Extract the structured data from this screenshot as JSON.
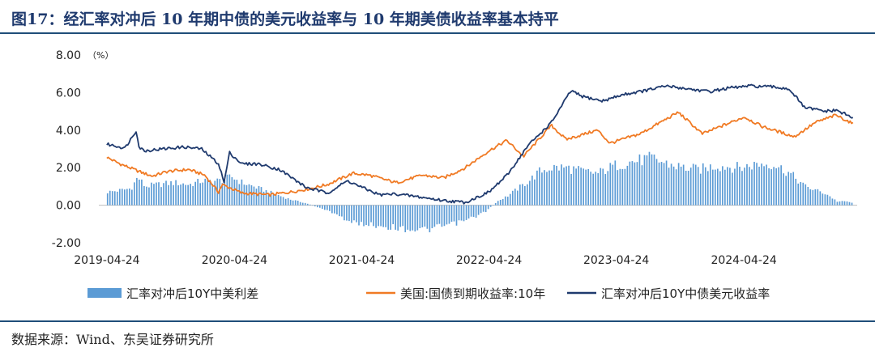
{
  "title": "图17：经汇率对冲后 10 年期中债的美元收益率与 10 年期美债收益率基本持平",
  "source": "数据来源：Wind、东吴证券研究所",
  "chart_data": {
    "type": "line",
    "unit_label": "（%）",
    "ylim": [
      -2.0,
      8.0
    ],
    "y_ticks": [
      "8.00",
      "6.00",
      "4.00",
      "2.00",
      "0.00",
      "-2.00"
    ],
    "x_ticks": [
      "2019-04-24",
      "2020-04-24",
      "2021-04-24",
      "2022-04-24",
      "2023-04-24",
      "2024-04-24"
    ],
    "xlim": [
      "2019-04-01",
      "2025-03-15"
    ],
    "grid": false,
    "legend_position": "bottom",
    "series": [
      {
        "name": "汇率对冲后10Y中美利差",
        "kind": "bar",
        "color": "#5b9bd5",
        "points": [
          [
            "2019-04-24",
            0.7
          ],
          [
            "2019-06-01",
            0.8
          ],
          [
            "2019-07-01",
            0.9
          ],
          [
            "2019-07-20",
            1.5
          ],
          [
            "2019-08-10",
            1.0
          ],
          [
            "2019-09-15",
            1.1
          ],
          [
            "2019-11-01",
            1.2
          ],
          [
            "2019-12-15",
            1.1
          ],
          [
            "2020-01-20",
            1.3
          ],
          [
            "2020-03-10",
            1.3
          ],
          [
            "2020-04-15",
            1.5
          ],
          [
            "2020-05-15",
            1.2
          ],
          [
            "2020-07-01",
            0.9
          ],
          [
            "2020-08-15",
            0.6
          ],
          [
            "2020-10-01",
            0.3
          ],
          [
            "2020-11-15",
            0.1
          ],
          [
            "2020-12-15",
            -0.1
          ],
          [
            "2021-01-15",
            -0.3
          ],
          [
            "2021-02-15",
            -0.5
          ],
          [
            "2021-03-15",
            -0.9
          ],
          [
            "2021-05-01",
            -1.0
          ],
          [
            "2021-06-15",
            -1.1
          ],
          [
            "2021-08-01",
            -1.2
          ],
          [
            "2021-09-15",
            -1.3
          ],
          [
            "2021-11-01",
            -1.3
          ],
          [
            "2021-12-15",
            -1.1
          ],
          [
            "2022-02-01",
            -0.9
          ],
          [
            "2022-03-15",
            -0.6
          ],
          [
            "2022-04-15",
            -0.3
          ],
          [
            "2022-05-15",
            0.2
          ],
          [
            "2022-06-15",
            0.5
          ],
          [
            "2022-07-15",
            0.9
          ],
          [
            "2022-08-15",
            1.3
          ],
          [
            "2022-09-15",
            1.8
          ],
          [
            "2022-10-15",
            2.0
          ],
          [
            "2022-12-01",
            2.0
          ],
          [
            "2023-01-15",
            1.8
          ],
          [
            "2023-03-01",
            1.7
          ],
          [
            "2023-04-15",
            2.1
          ],
          [
            "2023-06-01",
            2.3
          ],
          [
            "2023-08-01",
            2.5
          ],
          [
            "2023-09-15",
            2.2
          ],
          [
            "2023-11-01",
            2.0
          ],
          [
            "2023-12-15",
            1.9
          ],
          [
            "2024-02-01",
            2.1
          ],
          [
            "2024-04-15",
            2.0
          ],
          [
            "2024-06-01",
            2.2
          ],
          [
            "2024-07-15",
            2.2
          ],
          [
            "2024-09-01",
            1.7
          ],
          [
            "2024-10-15",
            1.0
          ],
          [
            "2024-11-15",
            0.8
          ],
          [
            "2024-12-15",
            0.6
          ],
          [
            "2025-01-15",
            0.2
          ],
          [
            "2025-02-15",
            0.2
          ],
          [
            "2025-03-01",
            0.1
          ]
        ]
      },
      {
        "name": "美国:国债到期收益率:10年",
        "kind": "line",
        "color": "#f07a24",
        "points": [
          [
            "2019-04-24",
            2.55
          ],
          [
            "2019-06-01",
            2.2
          ],
          [
            "2019-08-01",
            1.75
          ],
          [
            "2019-09-01",
            1.55
          ],
          [
            "2019-10-15",
            1.8
          ],
          [
            "2019-12-15",
            1.9
          ],
          [
            "2020-01-30",
            1.6
          ],
          [
            "2020-03-09",
            0.7
          ],
          [
            "2020-03-20",
            1.1
          ],
          [
            "2020-05-15",
            0.65
          ],
          [
            "2020-08-01",
            0.55
          ],
          [
            "2020-10-01",
            0.7
          ],
          [
            "2020-12-01",
            0.9
          ],
          [
            "2021-01-15",
            1.1
          ],
          [
            "2021-03-30",
            1.7
          ],
          [
            "2021-05-15",
            1.6
          ],
          [
            "2021-08-01",
            1.2
          ],
          [
            "2021-10-15",
            1.6
          ],
          [
            "2021-12-15",
            1.45
          ],
          [
            "2022-02-15",
            2.0
          ],
          [
            "2022-04-24",
            2.9
          ],
          [
            "2022-06-14",
            3.45
          ],
          [
            "2022-08-01",
            2.6
          ],
          [
            "2022-10-20",
            4.25
          ],
          [
            "2022-12-01",
            3.5
          ],
          [
            "2023-03-01",
            4.0
          ],
          [
            "2023-04-06",
            3.3
          ],
          [
            "2023-07-01",
            3.8
          ],
          [
            "2023-10-19",
            4.95
          ],
          [
            "2023-12-27",
            3.8
          ],
          [
            "2024-04-25",
            4.7
          ],
          [
            "2024-06-15",
            4.2
          ],
          [
            "2024-09-16",
            3.65
          ],
          [
            "2024-11-15",
            4.4
          ],
          [
            "2025-01-13",
            4.8
          ],
          [
            "2025-02-25",
            4.4
          ],
          [
            "2025-03-05",
            4.3
          ]
        ]
      },
      {
        "name": "汇率对冲后10Y中债美元收益率",
        "kind": "line",
        "color": "#1f3a6e",
        "points": [
          [
            "2019-04-24",
            3.25
          ],
          [
            "2019-06-15",
            3.05
          ],
          [
            "2019-07-18",
            4.0
          ],
          [
            "2019-07-25",
            3.1
          ],
          [
            "2019-08-10",
            2.9
          ],
          [
            "2019-10-01",
            3.0
          ],
          [
            "2019-12-01",
            3.1
          ],
          [
            "2020-01-20",
            3.0
          ],
          [
            "2020-03-10",
            2.2
          ],
          [
            "2020-03-25",
            1.2
          ],
          [
            "2020-04-10",
            2.8
          ],
          [
            "2020-05-15",
            2.2
          ],
          [
            "2020-07-01",
            2.2
          ],
          [
            "2020-09-01",
            1.9
          ],
          [
            "2020-11-15",
            0.95
          ],
          [
            "2021-01-15",
            0.65
          ],
          [
            "2021-03-15",
            1.3
          ],
          [
            "2021-04-24",
            0.95
          ],
          [
            "2021-06-15",
            0.55
          ],
          [
            "2021-08-01",
            0.6
          ],
          [
            "2021-10-01",
            0.45
          ],
          [
            "2021-12-15",
            0.25
          ],
          [
            "2022-02-15",
            0.15
          ],
          [
            "2022-04-24",
            0.7
          ],
          [
            "2022-06-15",
            1.6
          ],
          [
            "2022-08-15",
            3.2
          ],
          [
            "2022-10-20",
            4.4
          ],
          [
            "2022-12-15",
            6.1
          ],
          [
            "2023-01-15",
            5.8
          ],
          [
            "2023-03-15",
            5.55
          ],
          [
            "2023-05-15",
            5.9
          ],
          [
            "2023-07-15",
            6.1
          ],
          [
            "2023-09-15",
            6.35
          ],
          [
            "2023-11-15",
            6.2
          ],
          [
            "2024-01-15",
            6.05
          ],
          [
            "2024-03-15",
            6.25
          ],
          [
            "2024-05-15",
            6.35
          ],
          [
            "2024-07-15",
            6.3
          ],
          [
            "2024-09-01",
            6.2
          ],
          [
            "2024-10-15",
            5.2
          ],
          [
            "2024-11-15",
            5.1
          ],
          [
            "2024-12-15",
            5.0
          ],
          [
            "2025-01-15",
            5.05
          ],
          [
            "2025-02-15",
            4.8
          ],
          [
            "2025-03-05",
            4.6
          ]
        ]
      }
    ]
  }
}
